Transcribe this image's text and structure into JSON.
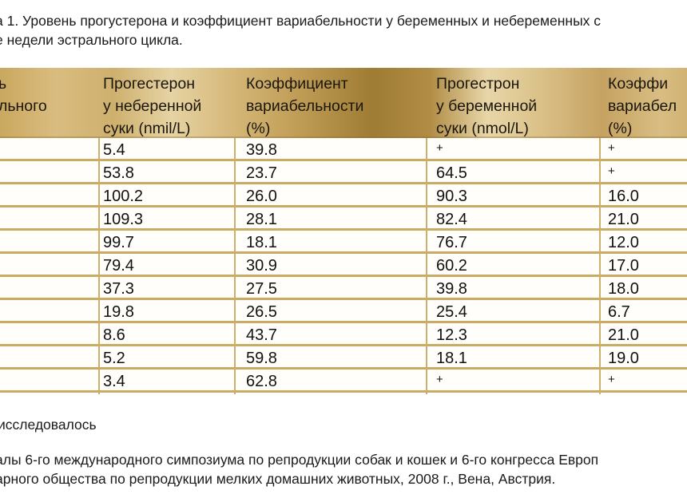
{
  "caption": {
    "line1": "а 1. Уровень прогустерона и коэффициент вариабельности у беременных и небеременных с",
    "line2": "е недели эстрального цикла."
  },
  "table": {
    "header_color_range": [
      "#9f7c34",
      "#e8d6a8"
    ],
    "rule_color": "#c9ab62",
    "columns": [
      {
        "label_lines": [
          "ь",
          "льного",
          ""
        ]
      },
      {
        "label_lines": [
          "Прогестерон",
          "у неберенной",
          "суки (nmil/L)"
        ]
      },
      {
        "label_lines": [
          "Коэффициент",
          "вариабельности",
          "(%)"
        ]
      },
      {
        "label_lines": [
          "Прогестрон",
          "у беременной",
          "суки (nmol/L)"
        ]
      },
      {
        "label_lines": [
          "Коэффи",
          "вариабел",
          "(%)"
        ]
      }
    ],
    "rows": [
      [
        "",
        "5.4",
        "39.8",
        "+",
        "+"
      ],
      [
        "",
        "53.8",
        "23.7",
        "64.5",
        "+"
      ],
      [
        "",
        "100.2",
        "26.0",
        "90.3",
        "16.0"
      ],
      [
        "",
        "109.3",
        "28.1",
        "82.4",
        "21.0"
      ],
      [
        "",
        "99.7",
        "18.1",
        "76.7",
        "12.0"
      ],
      [
        "",
        "79.4",
        "30.9",
        "60.2",
        "17.0"
      ],
      [
        "",
        "37.3",
        "27.5",
        "39.8",
        "18.0"
      ],
      [
        "",
        "19.8",
        "26.5",
        "25.4",
        "6.7"
      ],
      [
        "",
        "8.6",
        "43.7",
        "12.3",
        "21.0"
      ],
      [
        "",
        "5.2",
        "59.8",
        "18.1",
        "19.0"
      ],
      [
        "",
        "3.4",
        "62.8",
        "+",
        "+"
      ]
    ]
  },
  "notes": {
    "line1": "исследовалось",
    "line2": "алы 6-го международного симпозиума по репродукции собак и кошек и 6-го конгресса Европ",
    "line3": "арного общества по репродукции мелких домашних животных, 2008 г., Вена, Австрия."
  }
}
